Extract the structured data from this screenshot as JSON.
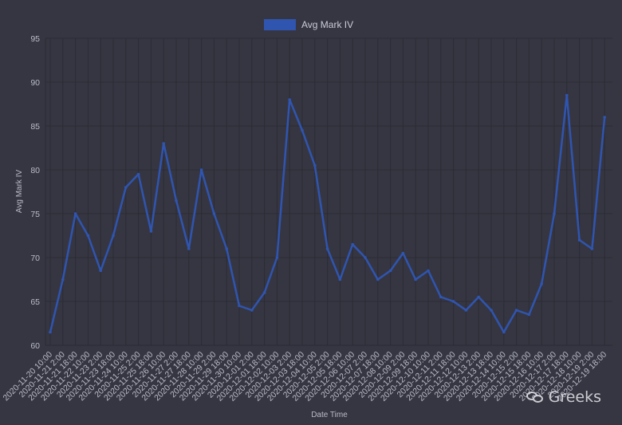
{
  "watermark": {
    "text": "Greeks",
    "icon": "wechat-icon"
  },
  "chart_data": {
    "type": "line",
    "title": "",
    "xlabel": "Date Time",
    "ylabel": "Avg Mark IV",
    "ylim": [
      60,
      95
    ],
    "yticks": [
      60,
      65,
      70,
      75,
      80,
      85,
      90,
      95
    ],
    "grid": true,
    "legend": "top-center",
    "colors": {
      "background": "#363642",
      "grid": "#2c2c36",
      "line": "#2f55b0",
      "legend_swatch": "#2f55b0",
      "text": "#b9bcc6"
    },
    "categories": [
      "2020-11-20 10:00",
      "2020-11-21 2:00",
      "2020-11-21 18:00",
      "2020-11-22 10:00",
      "2020-11-23 2:00",
      "2020-11-23 18:00",
      "2020-11-24 10:00",
      "2020-11-25 2:00",
      "2020-11-25 18:00",
      "2020-11-26 10:00",
      "2020-11-27 2:00",
      "2020-11-27 18:00",
      "2020-11-28 10:00",
      "2020-11-29 2:00",
      "2020-11-29 18:00",
      "2020-11-30 10:00",
      "2020-12-01 2:00",
      "2020-12-01 18:00",
      "2020-12-02 10:00",
      "2020-12-03 2:00",
      "2020-12-03 18:00",
      "2020-12-04 10:00",
      "2020-12-05 2:00",
      "2020-12-05 18:00",
      "2020-12-06 10:00",
      "2020-12-07 2:00",
      "2020-12-07 18:00",
      "2020-12-08 10:00",
      "2020-12-09 2:00",
      "2020-12-09 18:00",
      "2020-12-10 10:00",
      "2020-12-11 2:00",
      "2020-12-11 18:00",
      "2020-12-12 10:00",
      "2020-12-13 2:00",
      "2020-12-13 18:00",
      "2020-12-14 10:00",
      "2020-12-15 2:00",
      "2020-12-15 18:00",
      "2020-12-16 10:00",
      "2020-12-17 2:00",
      "2020-12-17 18:00",
      "2020-12-18 10:00",
      "2020-12-19 2:00",
      "2020-12-19 18:00"
    ],
    "series": [
      {
        "name": "Avg Mark IV",
        "values": [
          61.5,
          67.5,
          75.0,
          72.5,
          68.5,
          72.5,
          78.0,
          79.5,
          73.0,
          83.0,
          76.5,
          71.0,
          80.0,
          75.0,
          71.0,
          64.5,
          64.0,
          66.0,
          70.0,
          88.0,
          84.5,
          80.5,
          71.0,
          67.5,
          71.5,
          70.0,
          67.5,
          68.5,
          70.5,
          67.5,
          68.5,
          65.5,
          65.0,
          64.0,
          65.5,
          64.0,
          61.5,
          64.0,
          63.5,
          67.0,
          75.0,
          88.5,
          72.0,
          71.0,
          86.0
        ]
      }
    ]
  }
}
